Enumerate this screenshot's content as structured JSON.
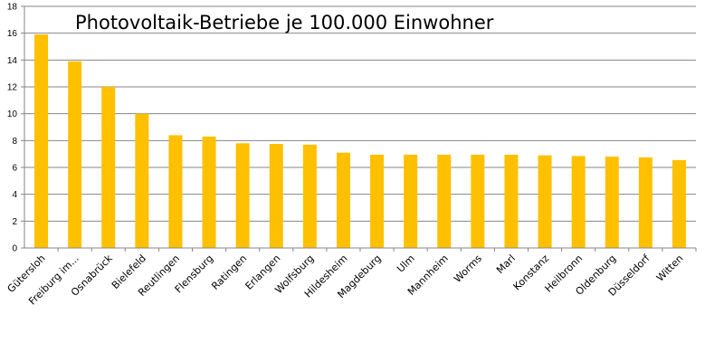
{
  "chart_data": {
    "type": "bar",
    "title": "Photovoltaik-Betriebe je 100.000 Einwohner",
    "xlabel": "",
    "ylabel": "",
    "ylim": [
      0,
      18
    ],
    "yticks": [
      0,
      2,
      4,
      6,
      8,
      10,
      12,
      14,
      16,
      18
    ],
    "grid": true,
    "legend": "none",
    "bar_color": "#ffc000",
    "categories": [
      "Gütersloh",
      "Freiburg im...",
      "Osnabrück",
      "Bielefeld",
      "Reutlingen",
      "Flensburg",
      "Ratingen",
      "Erlangen",
      "Wolfsburg",
      "Hildesheim",
      "Magdeburg",
      "Ulm",
      "Mannheim",
      "Worms",
      "Marl",
      "Konstanz",
      "Heilbronn",
      "Oldenburg",
      "Düsseldorf",
      "Witten"
    ],
    "values": [
      15.9,
      13.9,
      12.0,
      10.0,
      8.4,
      8.3,
      7.8,
      7.75,
      7.7,
      7.1,
      6.95,
      6.95,
      6.95,
      6.95,
      6.95,
      6.9,
      6.85,
      6.8,
      6.75,
      6.55
    ]
  }
}
